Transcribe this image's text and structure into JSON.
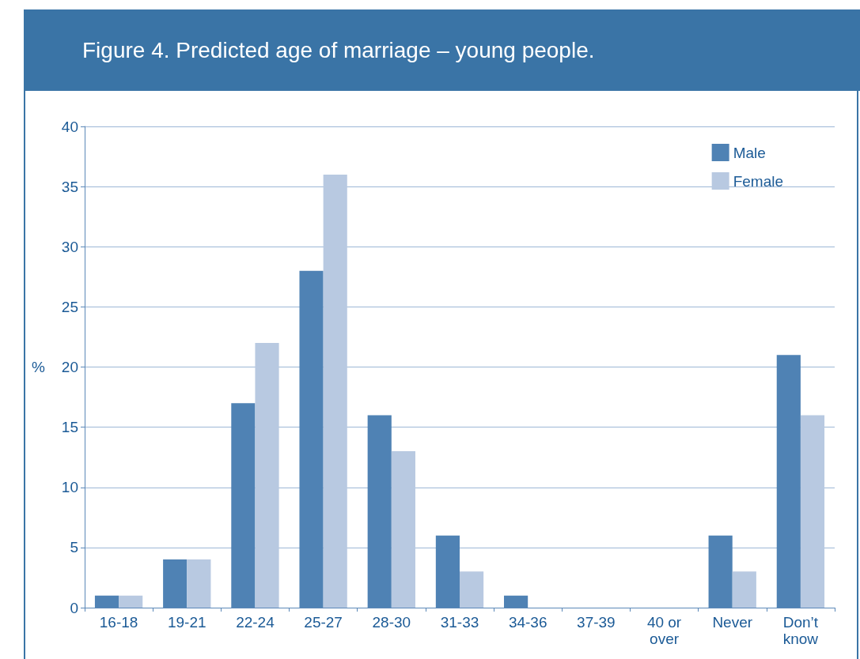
{
  "chart_data": {
    "type": "bar",
    "title": "Figure 4.  Predicted age of marriage – young people.",
    "ylabel": "%",
    "categories": [
      "16-18",
      "19-21",
      "22-24",
      "25-27",
      "28-30",
      "31-33",
      "34-36",
      "37-39",
      "40 or\nover",
      "Never",
      "Don’t\nknow"
    ],
    "series": [
      {
        "name": "Male",
        "color": "#4f82b4",
        "values": [
          1,
          4,
          17,
          28,
          16,
          6,
          1,
          0,
          0,
          6,
          21
        ]
      },
      {
        "name": "Female",
        "color": "#b8c9e1",
        "values": [
          1,
          4,
          22,
          36,
          13,
          3,
          0,
          0,
          0,
          3,
          16
        ]
      }
    ],
    "ylim": [
      0,
      40
    ],
    "yticks": [
      0,
      5,
      10,
      15,
      20,
      25,
      30,
      35,
      40
    ],
    "grid": "y",
    "legend": "top right"
  }
}
